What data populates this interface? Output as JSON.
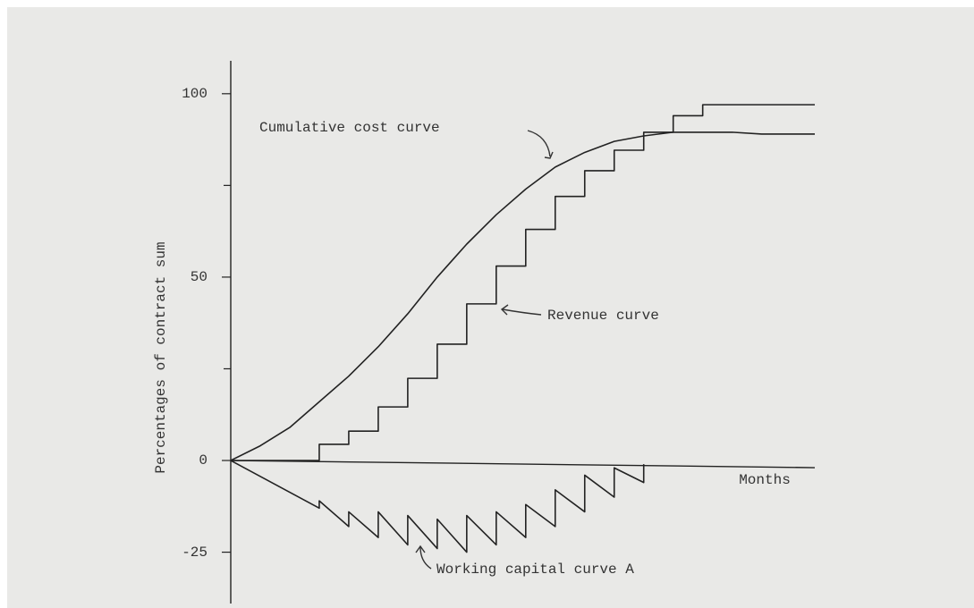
{
  "chart_data": {
    "type": "line",
    "y_label": "Percentages of contract sum",
    "x_label": "Months",
    "xlim": [
      0,
      19.8
    ],
    "ylim": [
      -39,
      108
    ],
    "yticks": [
      -25,
      0,
      50,
      100
    ],
    "minor_yticks": [
      25,
      75
    ],
    "series": [
      {
        "name": "Cumulative cost curve",
        "color": "#222222",
        "step": "none",
        "x": [
          0,
          1,
          2,
          3,
          4,
          5,
          6,
          7,
          8,
          9,
          10,
          11,
          12,
          13,
          14,
          15,
          16,
          17,
          18,
          19,
          19.8
        ],
        "values": [
          0,
          4,
          9,
          16,
          23,
          31,
          40,
          50,
          59,
          67,
          74,
          80,
          84,
          87,
          88.5,
          89.5,
          89.5,
          89.5,
          89,
          89,
          89
        ]
      },
      {
        "name": "Revenue curve",
        "color": "#222222",
        "step": "post",
        "x": [
          0,
          3,
          4,
          5,
          6,
          7,
          8,
          9,
          10,
          11,
          12,
          13,
          14,
          15,
          16,
          19.8
        ],
        "values": [
          0,
          4.4,
          8,
          14.6,
          22.4,
          31.7,
          42.7,
          53,
          63,
          72,
          79,
          84.6,
          89.5,
          94,
          97,
          97
        ]
      },
      {
        "name": "Working capital curve A",
        "color": "#222222",
        "step": "none",
        "x": [
          0,
          3,
          3,
          4,
          4,
          5,
          5,
          6,
          6,
          7,
          7,
          8,
          8,
          9,
          9,
          10,
          10,
          11,
          11,
          12,
          12,
          13,
          13,
          14,
          14
        ],
        "values": [
          0,
          -13,
          -11,
          -18,
          -14,
          -21,
          -14,
          -23,
          -15,
          -24,
          -16,
          -25,
          -15,
          -23,
          -14,
          -21,
          -12,
          -18,
          -8,
          -14,
          -4,
          -10,
          -2,
          -6,
          -1
        ]
      }
    ]
  }
}
